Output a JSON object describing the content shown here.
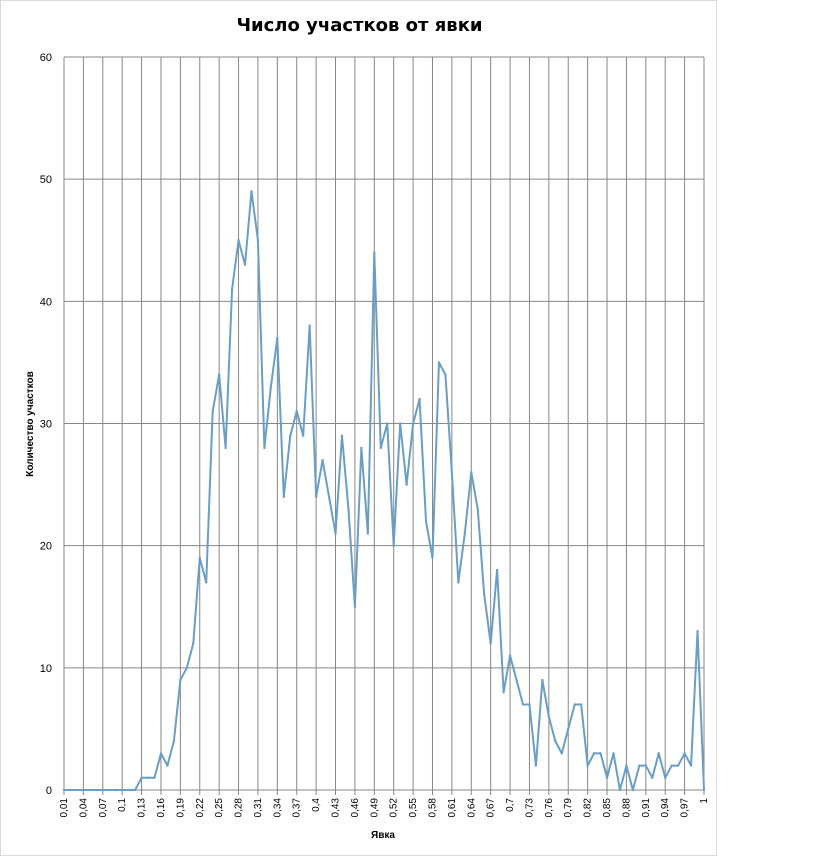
{
  "chart_data": {
    "type": "line",
    "title": "Число участков от явки",
    "xlabel": "Явка",
    "ylabel": "Количество  участков",
    "ylim": [
      0,
      60
    ],
    "yticks": [
      0,
      10,
      20,
      30,
      40,
      50,
      60
    ],
    "xlim": [
      0.01,
      1.0
    ],
    "xtick_labels": [
      "0,01",
      "0,04",
      "0,07",
      "0,1",
      "0,13",
      "0,16",
      "0,19",
      "0,22",
      "0,25",
      "0,28",
      "0,31",
      "0,34",
      "0,37",
      "0,4",
      "0,43",
      "0,46",
      "0,49",
      "0,52",
      "0,55",
      "0,58",
      "0,61",
      "0,64",
      "0,67",
      "0,7",
      "0,73",
      "0,76",
      "0,79",
      "0,82",
      "0,85",
      "0,88",
      "0,91",
      "0,94",
      "0,97",
      "1"
    ],
    "grid": true,
    "line_color": "#6a9ec4",
    "series": [
      {
        "x": [
          0.01,
          0.02,
          0.03,
          0.04,
          0.05,
          0.06,
          0.07,
          0.08,
          0.09,
          0.1,
          0.11,
          0.12,
          0.13,
          0.14,
          0.15,
          0.16,
          0.17,
          0.18,
          0.19,
          0.2,
          0.21,
          0.22,
          0.23,
          0.24,
          0.25,
          0.26,
          0.27,
          0.28,
          0.29,
          0.3,
          0.31,
          0.32,
          0.33,
          0.34,
          0.35,
          0.36,
          0.37,
          0.38,
          0.39,
          0.4,
          0.41,
          0.42,
          0.43,
          0.44,
          0.45,
          0.46,
          0.47,
          0.48,
          0.49,
          0.5,
          0.51,
          0.52,
          0.53,
          0.54,
          0.55,
          0.56,
          0.57,
          0.58,
          0.59,
          0.6,
          0.61,
          0.62,
          0.63,
          0.64,
          0.65,
          0.66,
          0.67,
          0.68,
          0.69,
          0.7,
          0.71,
          0.72,
          0.73,
          0.74,
          0.75,
          0.76,
          0.77,
          0.78,
          0.79,
          0.8,
          0.81,
          0.82,
          0.83,
          0.84,
          0.85,
          0.86,
          0.87,
          0.88,
          0.89,
          0.9,
          0.91,
          0.92,
          0.93,
          0.94,
          0.95,
          0.96,
          0.97,
          0.98,
          0.99,
          1.0
        ],
        "values": [
          0,
          0,
          0,
          0,
          0,
          0,
          0,
          0,
          0,
          0,
          0,
          0,
          1,
          1,
          1,
          3,
          2,
          4,
          9,
          10,
          12,
          19,
          17,
          31,
          34,
          28,
          41,
          45,
          43,
          49,
          45,
          28,
          33,
          37,
          24,
          29,
          31,
          29,
          38,
          24,
          27,
          24,
          21,
          29,
          23,
          15,
          28,
          21,
          44,
          28,
          30,
          20,
          30,
          25,
          30,
          32,
          22,
          19,
          35,
          34,
          26,
          17,
          21,
          26,
          23,
          16,
          12,
          18,
          8,
          11,
          9,
          7,
          7,
          2,
          9,
          6,
          4,
          3,
          5,
          7,
          7,
          2,
          3,
          3,
          1,
          3,
          0,
          2,
          0,
          2,
          2,
          1,
          3,
          1,
          2,
          2,
          3,
          2,
          13,
          0
        ]
      }
    ]
  }
}
